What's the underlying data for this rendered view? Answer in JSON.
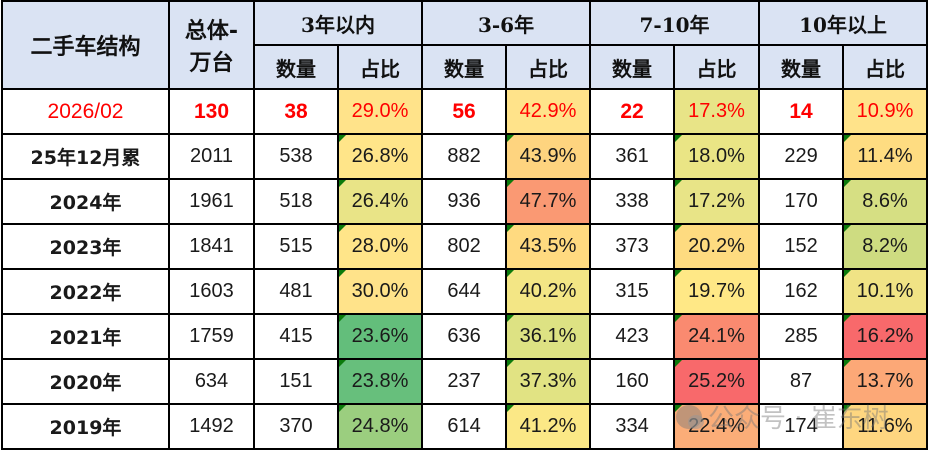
{
  "table": {
    "title": "二手车结构",
    "total_header": "总体-万台",
    "total_header_line1": "总体-",
    "total_header_line2": "万台",
    "groups": [
      {
        "label": "3年以内",
        "sub": [
          "数量",
          "占比"
        ]
      },
      {
        "label": "3-6年",
        "sub": [
          "数量",
          "占比"
        ]
      },
      {
        "label": "7-10年",
        "sub": [
          "数量",
          "占比"
        ]
      },
      {
        "label": "10年以上",
        "sub": [
          "数量",
          "占比"
        ]
      }
    ],
    "rows": [
      {
        "label": "2026/02",
        "total": "130",
        "highlight": true,
        "cells": [
          {
            "count": "38",
            "pct": "29.0%",
            "color": "#FFE38A"
          },
          {
            "count": "56",
            "pct": "42.9%",
            "color": "#FFE38A"
          },
          {
            "count": "22",
            "pct": "17.3%",
            "color": "#E8E487"
          },
          {
            "count": "14",
            "pct": "10.9%",
            "color": "#FFE38A"
          }
        ]
      },
      {
        "label": "25年12月累",
        "total": "2011",
        "cells": [
          {
            "count": "538",
            "pct": "26.8%",
            "color": "#FFE589"
          },
          {
            "count": "882",
            "pct": "43.9%",
            "color": "#FED47F"
          },
          {
            "count": "361",
            "pct": "18.0%",
            "color": "#EAE585"
          },
          {
            "count": "229",
            "pct": "11.4%",
            "color": "#FEDC81"
          }
        ]
      },
      {
        "label": "2024年",
        "total": "1961",
        "cells": [
          {
            "count": "518",
            "pct": "26.4%",
            "color": "#E9E487"
          },
          {
            "count": "936",
            "pct": "47.7%",
            "color": "#FA9973"
          },
          {
            "count": "338",
            "pct": "17.2%",
            "color": "#E8E487"
          },
          {
            "count": "170",
            "pct": "8.6%",
            "color": "#D6DF83"
          }
        ]
      },
      {
        "label": "2023年",
        "total": "1841",
        "cells": [
          {
            "count": "515",
            "pct": "28.0%",
            "color": "#FFE589"
          },
          {
            "count": "802",
            "pct": "43.5%",
            "color": "#FFDA80"
          },
          {
            "count": "373",
            "pct": "20.2%",
            "color": "#FEDB80"
          },
          {
            "count": "152",
            "pct": "8.2%",
            "color": "#CEDC81"
          }
        ]
      },
      {
        "label": "2022年",
        "total": "1603",
        "cells": [
          {
            "count": "481",
            "pct": "30.0%",
            "color": "#FFE38A"
          },
          {
            "count": "644",
            "pct": "40.2%",
            "color": "#F3E685"
          },
          {
            "count": "315",
            "pct": "19.7%",
            "color": "#FFE886"
          },
          {
            "count": "162",
            "pct": "10.1%",
            "color": "#F0E385"
          }
        ]
      },
      {
        "label": "2021年",
        "total": "1759",
        "cells": [
          {
            "count": "415",
            "pct": "23.6%",
            "color": "#63BE7B"
          },
          {
            "count": "636",
            "pct": "36.1%",
            "color": "#DDE283"
          },
          {
            "count": "423",
            "pct": "24.1%",
            "color": "#FA8A70"
          },
          {
            "count": "285",
            "pct": "16.2%",
            "color": "#F8696B"
          }
        ]
      },
      {
        "label": "2020年",
        "total": "634",
        "cells": [
          {
            "count": "151",
            "pct": "23.8%",
            "color": "#67BF7C"
          },
          {
            "count": "237",
            "pct": "37.3%",
            "color": "#E1E383"
          },
          {
            "count": "160",
            "pct": "25.2%",
            "color": "#F8696B"
          },
          {
            "count": "87",
            "pct": "13.7%",
            "color": "#FCA877"
          }
        ]
      },
      {
        "label": "2019年",
        "total": "1492",
        "cells": [
          {
            "count": "370",
            "pct": "24.8%",
            "color": "#9BCE7F"
          },
          {
            "count": "614",
            "pct": "41.2%",
            "color": "#FBE886"
          },
          {
            "count": "334",
            "pct": "22.4%",
            "color": "#FBAD78"
          },
          {
            "count": "174",
            "pct": "11.6%",
            "color": "#FED680"
          }
        ]
      }
    ]
  },
  "watermark": {
    "icon": "wechat-icon",
    "text": "公众号 · 崔东树"
  }
}
